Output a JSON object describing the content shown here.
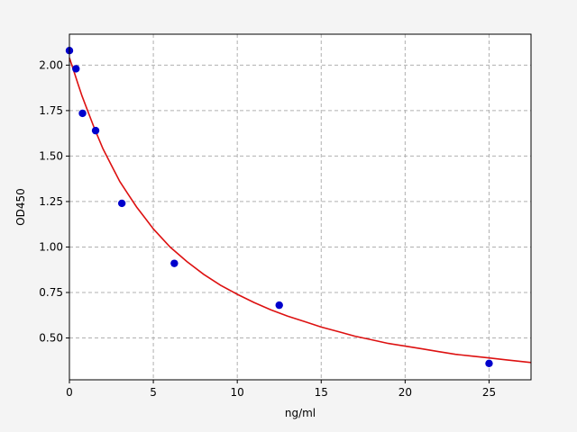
{
  "chart_data": {
    "type": "scatter",
    "title": "",
    "xlabel": "ng/ml",
    "ylabel": "OD450",
    "xlim": [
      0,
      27.5
    ],
    "ylim": [
      0.27,
      2.17
    ],
    "grid": true,
    "x_ticks": [
      0,
      5,
      10,
      15,
      20,
      25
    ],
    "y_ticks": [
      0.5,
      0.75,
      1.0,
      1.25,
      1.5,
      1.75,
      2.0
    ],
    "x_tick_labels": [
      "0",
      "5",
      "10",
      "15",
      "20",
      "25"
    ],
    "y_tick_labels": [
      "0.50",
      "0.75",
      "1.00",
      "1.25",
      "1.50",
      "1.75",
      "2.00"
    ],
    "points": {
      "x": [
        0,
        0.39,
        0.78,
        1.56,
        3.125,
        6.25,
        12.5,
        25
      ],
      "y": [
        2.08,
        1.98,
        1.735,
        1.64,
        1.24,
        0.91,
        0.68,
        0.36
      ],
      "color": "#0000cc"
    },
    "fit_curve": {
      "x": [
        0,
        0.25,
        0.5,
        0.75,
        1,
        1.5,
        2,
        2.5,
        3,
        3.5,
        4,
        4.5,
        5,
        6,
        7,
        8,
        9,
        10,
        11,
        12,
        13,
        14,
        15,
        16,
        17,
        18,
        19,
        20,
        21,
        22,
        23,
        24,
        25,
        26,
        27,
        27.5
      ],
      "y": [
        2.04,
        1.97,
        1.9,
        1.83,
        1.77,
        1.65,
        1.54,
        1.45,
        1.36,
        1.29,
        1.22,
        1.16,
        1.1,
        1.0,
        0.92,
        0.85,
        0.79,
        0.74,
        0.695,
        0.655,
        0.62,
        0.59,
        0.56,
        0.535,
        0.51,
        0.49,
        0.47,
        0.455,
        0.44,
        0.425,
        0.41,
        0.4,
        0.39,
        0.38,
        0.37,
        0.365
      ],
      "color": "#dd1111"
    }
  }
}
